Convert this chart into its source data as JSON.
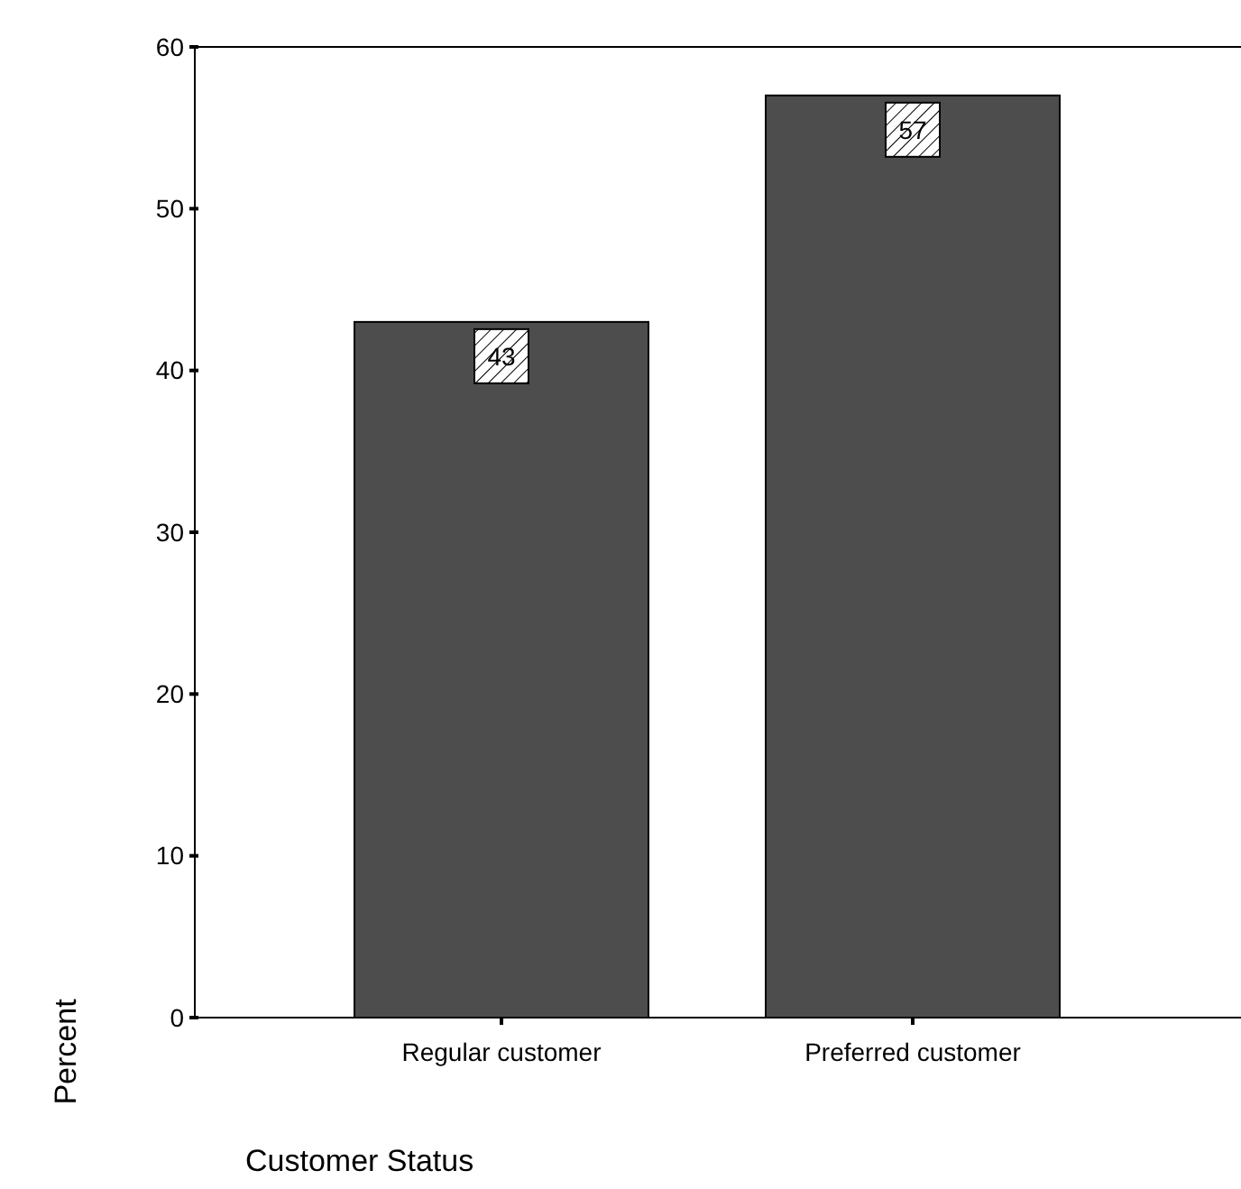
{
  "chart_data": {
    "type": "bar",
    "xlabel": "Customer Status",
    "ylabel": "Percent",
    "categories": [
      "Regular customer",
      "Preferred customer"
    ],
    "values": [
      43,
      57
    ],
    "color": "#4d4d4d",
    "ylim": [
      0,
      60
    ],
    "yticks": [
      0,
      10,
      20,
      30,
      40,
      50,
      60
    ],
    "data_labels": true,
    "grid": false
  }
}
